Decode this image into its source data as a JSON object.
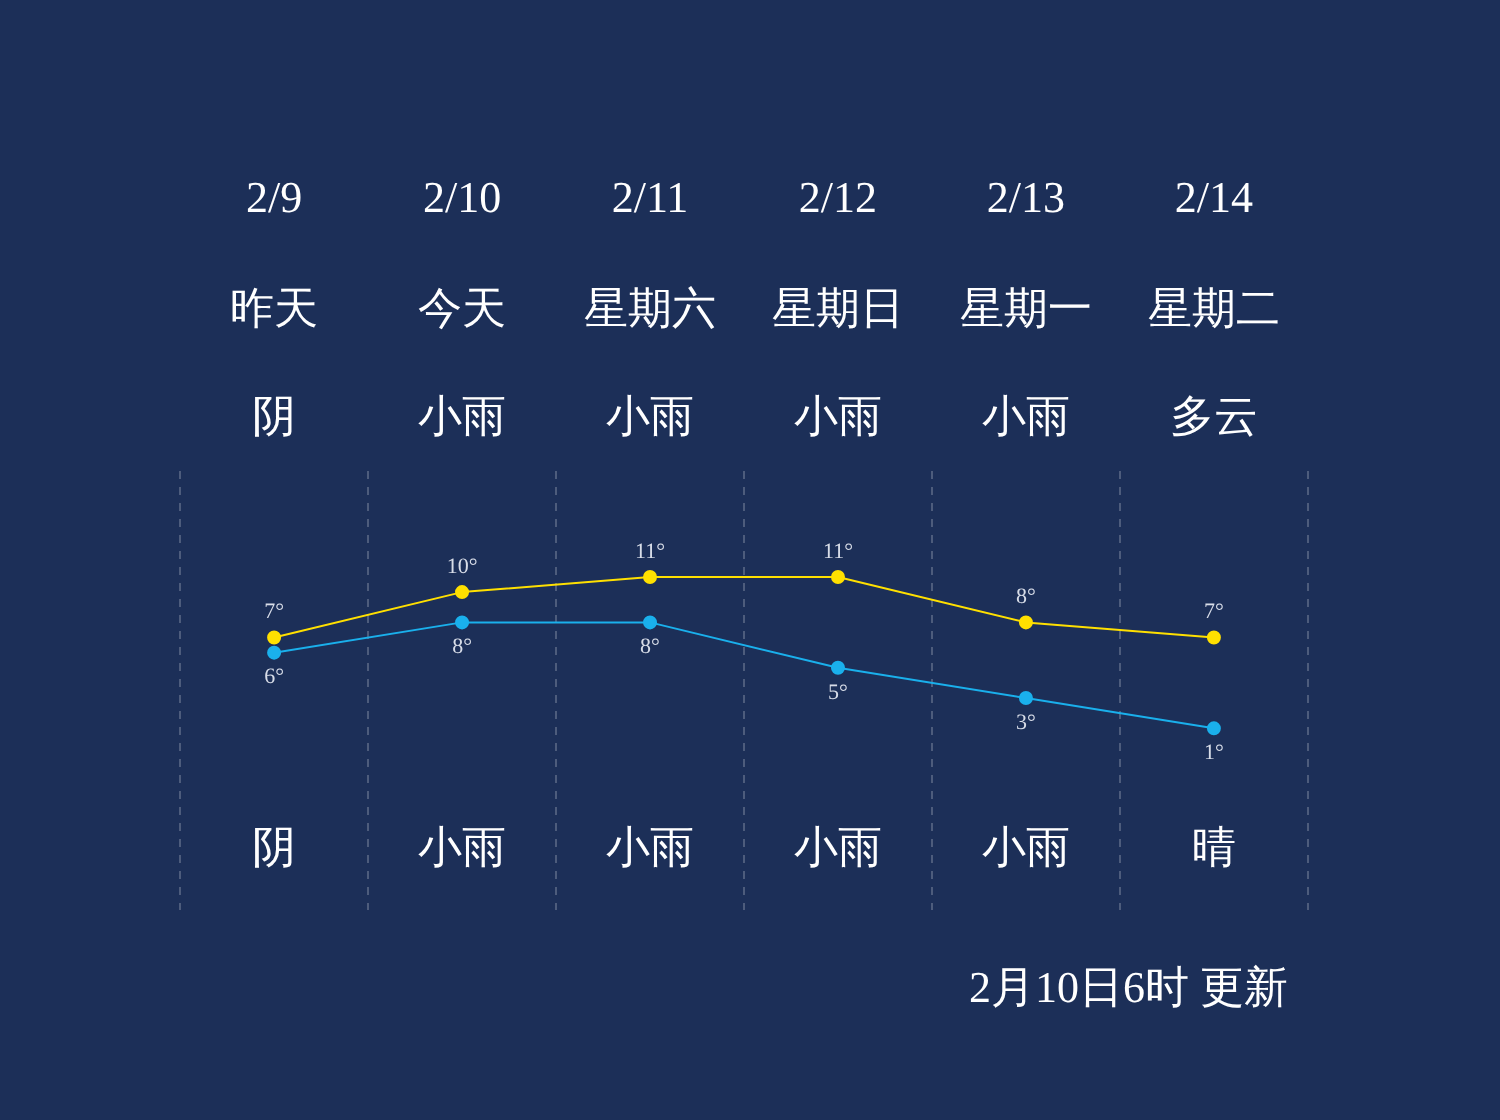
{
  "chart_data": {
    "type": "line",
    "categories": [
      "2/9",
      "2/10",
      "2/11",
      "2/12",
      "2/13",
      "2/14"
    ],
    "series": [
      {
        "color": "#ffe000",
        "values": [
          7,
          10,
          11,
          11,
          8,
          7
        ],
        "value_labels": [
          "7°",
          "10°",
          "11°",
          "11°",
          "8°",
          "7°"
        ]
      },
      {
        "color": "#1ab0ec",
        "values": [
          6,
          8,
          8,
          5,
          3,
          1
        ],
        "value_labels": [
          "6°",
          "8°",
          "8°",
          "5°",
          "3°",
          "1°"
        ]
      }
    ],
    "ylim": [
      -11,
      18
    ],
    "tick_labels": "x",
    "grid": "x",
    "legend": false,
    "marker": "circle",
    "line_style": "solid",
    "annotations": [
      "昨天",
      "今天",
      "星期六",
      "星期日",
      "星期一",
      "星期二",
      "阴",
      "小雨",
      "小雨",
      "小雨",
      "小雨",
      "多云",
      "阴",
      "小雨",
      "小雨",
      "小雨",
      "小雨",
      "晴",
      "2月10日6时 更新"
    ]
  }
}
